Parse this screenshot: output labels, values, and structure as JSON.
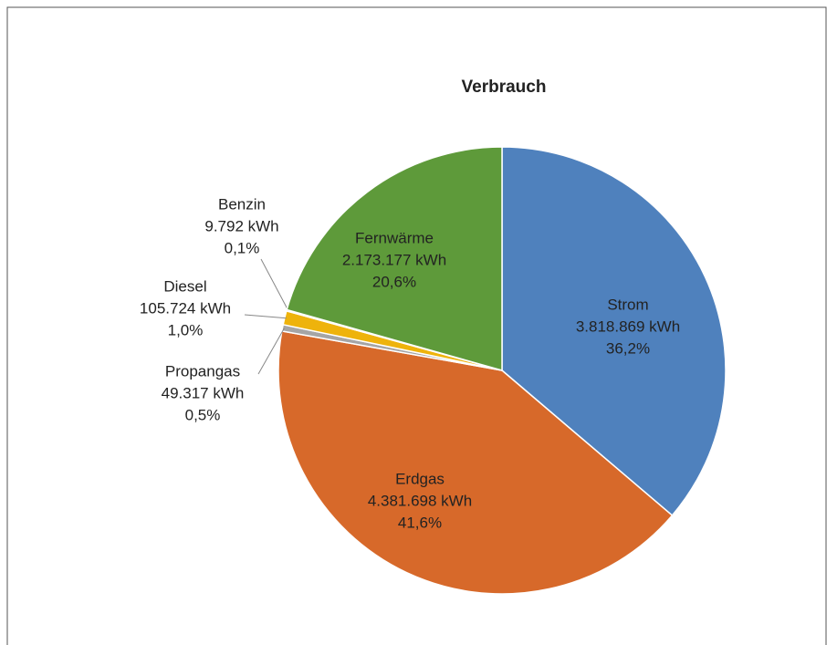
{
  "chart_data": {
    "type": "pie",
    "title": "Verbrauch",
    "categories": [
      "Strom",
      "Erdgas",
      "Propangas",
      "Diesel",
      "Benzin",
      "Fernwärme"
    ],
    "values": [
      3818869,
      4381698,
      49317,
      105724,
      9792,
      2173177
    ],
    "value_labels": [
      "3.818.869 kWh",
      "4.381.698 kWh",
      "49.317 kWh",
      "105.724 kWh",
      "9.792 kWh",
      "2.173.177 kWh"
    ],
    "percents": [
      36.2,
      41.6,
      0.5,
      1.0,
      0.1,
      20.6
    ],
    "percent_labels": [
      "36,2%",
      "41,6%",
      "0,5%",
      "1,0%",
      "0,1%",
      "20,6%"
    ],
    "colors": [
      "#4f81bd",
      "#d7692a",
      "#a5a5a5",
      "#eeb30c",
      "#4aa0c8",
      "#5e9a3a"
    ]
  }
}
